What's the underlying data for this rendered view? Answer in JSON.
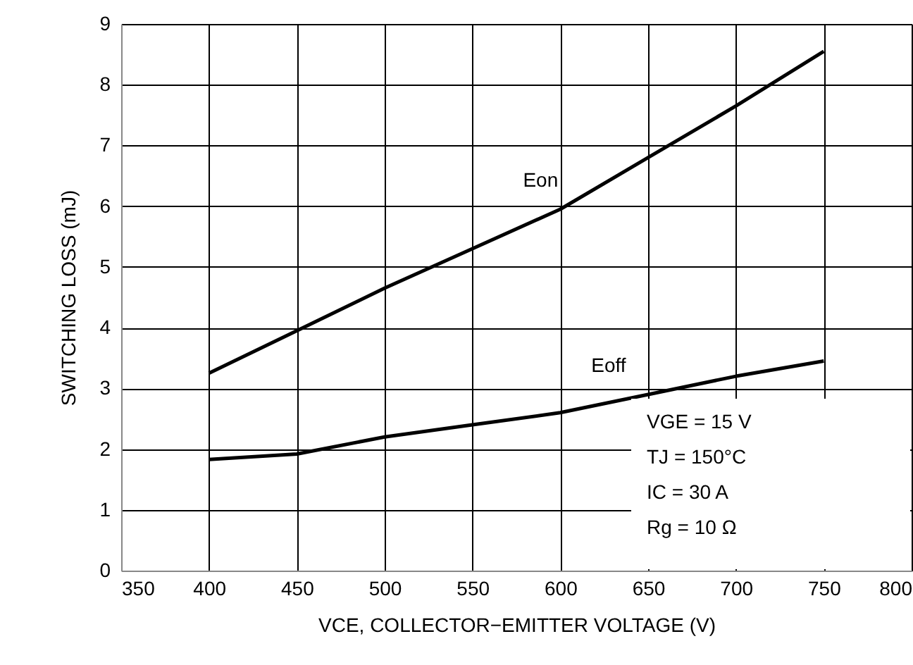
{
  "chart_data": {
    "type": "line",
    "xlabel": "VCE, COLLECTOR−EMITTER VOLTAGE (V)",
    "ylabel": "SWITCHING LOSS (mJ)",
    "x": [
      400,
      450,
      500,
      550,
      600,
      650,
      700,
      750
    ],
    "series": [
      {
        "name": "Eon",
        "color": "#000000",
        "values": [
          3.25,
          3.95,
          4.65,
          5.3,
          5.95,
          6.8,
          7.65,
          8.55
        ]
      },
      {
        "name": "Eoff",
        "color": "#000000",
        "values": [
          1.83,
          1.92,
          2.2,
          2.4,
          2.6,
          2.9,
          3.2,
          3.45
        ]
      }
    ],
    "xlim": [
      350,
      800
    ],
    "xticks": [
      350,
      400,
      450,
      500,
      550,
      600,
      650,
      700,
      750,
      800
    ],
    "ylim": [
      0,
      9
    ],
    "yticks": [
      0,
      1,
      2,
      3,
      4,
      5,
      6,
      7,
      8,
      9
    ],
    "grid": true,
    "marker": "none",
    "line_style": "solid",
    "annotations": [
      "VGE = 15 V",
      "TJ = 150°C",
      "IC = 30 A",
      "Rg = 10 Ω"
    ]
  }
}
